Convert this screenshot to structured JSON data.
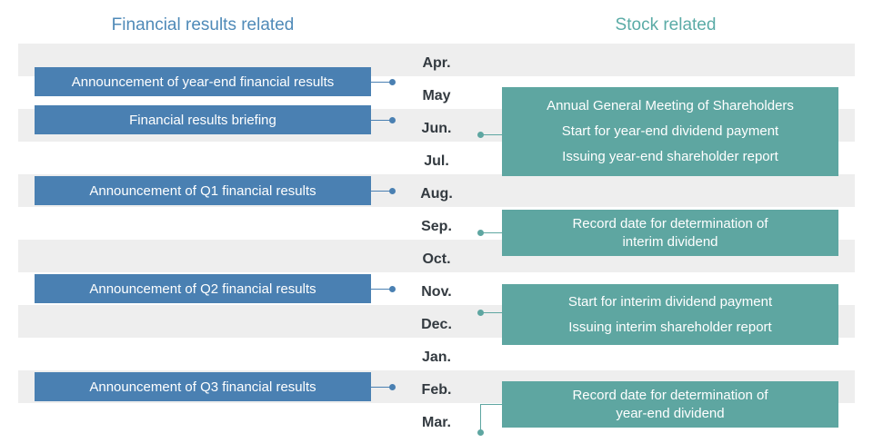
{
  "headers": {
    "financial": "Financial results related",
    "stock": "Stock related"
  },
  "months": [
    "Apr.",
    "May",
    "Jun.",
    "Jul.",
    "Aug.",
    "Sep.",
    "Oct.",
    "Nov.",
    "Dec.",
    "Jan.",
    "Feb.",
    "Mar."
  ],
  "financial_events": [
    "Announcement of year-end financial results",
    "Financial results briefing",
    "Announcement of Q1 financial results",
    "Announcement of Q2 financial results",
    "Announcement of Q3 financial results"
  ],
  "stock_events": [
    [
      "Annual General Meeting of Shareholders",
      "Start for year-end dividend payment",
      "Issuing year-end shareholder report"
    ],
    [
      "Record date for determination of",
      "interim dividend"
    ],
    [
      "Start for interim dividend payment",
      "Issuing interim shareholder report"
    ],
    [
      "Record date for determination of",
      "year-end dividend"
    ]
  ],
  "colors": {
    "financial_accent": "#4a80b2",
    "stock_accent": "#5ea6a1",
    "band": "#eeeeee",
    "month_text": "#333a40"
  }
}
